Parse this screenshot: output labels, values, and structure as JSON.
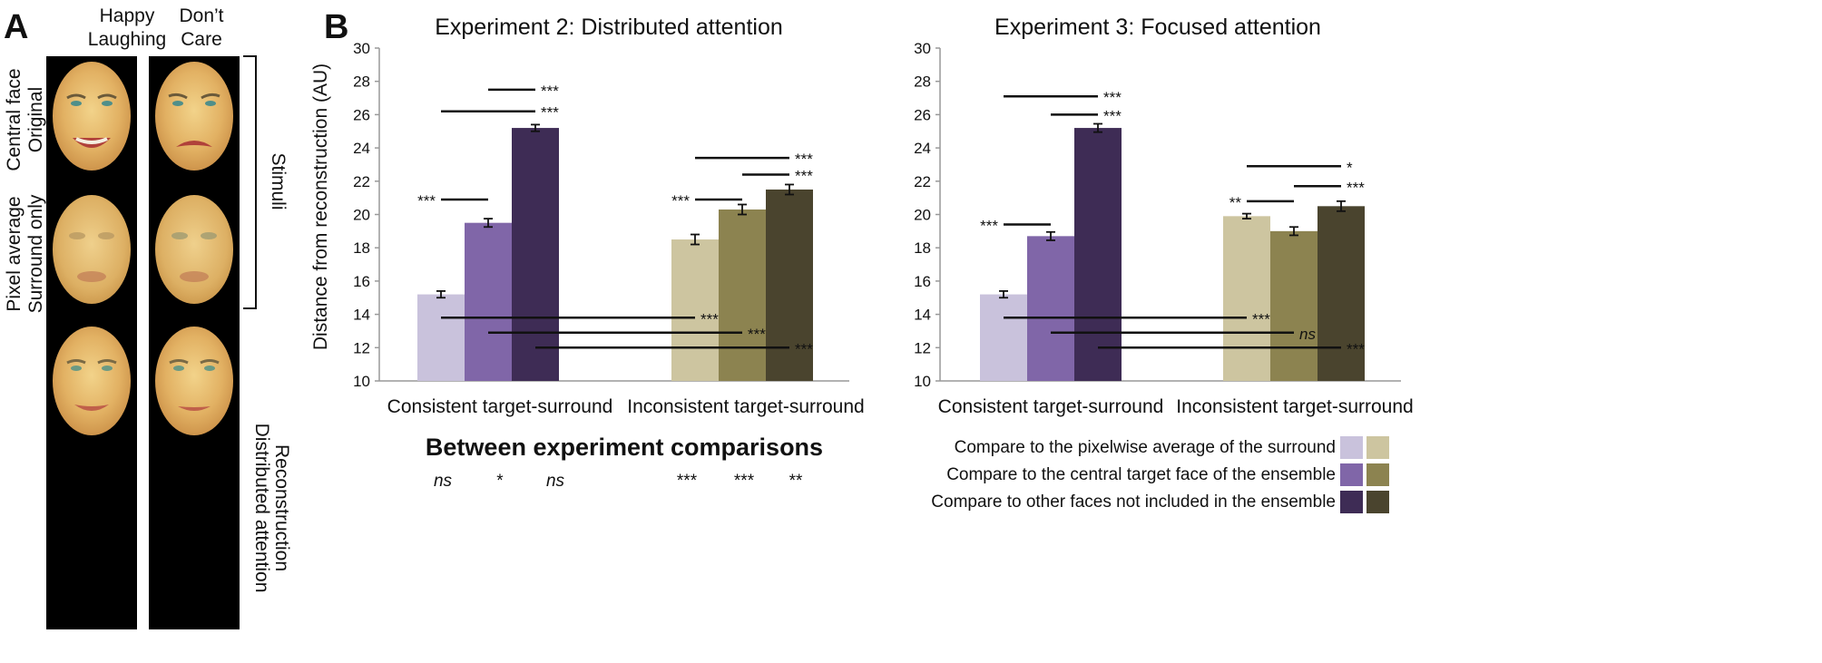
{
  "panel_a": {
    "letter": "A",
    "columns": [
      "Happy\nLaughing",
      "Don’t\nCare"
    ],
    "row_labels": [
      [
        "Central face",
        "Original"
      ],
      [
        "Pixel average",
        "Surround only"
      ],
      [
        "Distributed attention",
        "Reconstruction"
      ]
    ],
    "stimuli_label": "Stimuli"
  },
  "panel_b": {
    "letter": "B",
    "ylabel": "Distance from reconstruction (AU)"
  },
  "colors": {
    "consistent": [
      "#c9c2dc",
      "#8066a8",
      "#3e2c55"
    ],
    "inconsistent": [
      "#cdc5a0",
      "#8c8350",
      "#4a442e"
    ]
  },
  "chart_data": [
    {
      "type": "bar",
      "title": "Experiment 2: Distributed attention",
      "ylabel": "Distance from reconstruction (AU)",
      "ylim": [
        10,
        30
      ],
      "yticks": [
        10,
        12,
        14,
        16,
        18,
        20,
        22,
        24,
        26,
        28,
        30
      ],
      "categories": [
        "Consistent target-surround",
        "Inconsistent target-surround"
      ],
      "series": [
        {
          "name": "Compare to the pixelwise average of the surround",
          "values": [
            15.2,
            18.5
          ],
          "errors": [
            0.2,
            0.3
          ]
        },
        {
          "name": "Compare to the central target face of the ensemble",
          "values": [
            19.5,
            20.3
          ],
          "errors": [
            0.25,
            0.3
          ]
        },
        {
          "name": "Compare to other faces not included in the ensemble",
          "values": [
            25.2,
            21.5
          ],
          "errors": [
            0.2,
            0.3
          ]
        }
      ],
      "within": [
        {
          "group": 0,
          "from": 1,
          "to": 2,
          "y": 27.5,
          "label": "***",
          "side": "right"
        },
        {
          "group": 0,
          "from": 0,
          "to": 2,
          "y": 26.2,
          "label": "***",
          "side": "right"
        },
        {
          "group": 0,
          "from": 0,
          "to": 1,
          "y": 20.9,
          "label": "***",
          "side": "left"
        },
        {
          "group": 1,
          "from": 0,
          "to": 2,
          "y": 23.4,
          "label": "***",
          "side": "right"
        },
        {
          "group": 1,
          "from": 1,
          "to": 2,
          "y": 22.4,
          "label": "***",
          "side": "right"
        },
        {
          "group": 1,
          "from": 0,
          "to": 1,
          "y": 20.9,
          "label": "***",
          "side": "left"
        }
      ],
      "between": [
        {
          "series": 0,
          "y": 13.8,
          "label": "***"
        },
        {
          "series": 1,
          "y": 12.9,
          "label": "***"
        },
        {
          "series": 2,
          "y": 12.0,
          "label": "***"
        }
      ]
    },
    {
      "type": "bar",
      "title": "Experiment 3: Focused attention",
      "ylabel": "",
      "ylim": [
        10,
        30
      ],
      "yticks": [
        10,
        12,
        14,
        16,
        18,
        20,
        22,
        24,
        26,
        28,
        30
      ],
      "categories": [
        "Consistent target-surround",
        "Inconsistent target-surround"
      ],
      "series": [
        {
          "name": "Compare to the pixelwise average of the surround",
          "values": [
            15.2,
            19.9
          ],
          "errors": [
            0.2,
            0.15
          ]
        },
        {
          "name": "Compare to the central target face of the ensemble",
          "values": [
            18.7,
            19.0
          ],
          "errors": [
            0.25,
            0.25
          ]
        },
        {
          "name": "Compare to other faces not included in the ensemble",
          "values": [
            25.2,
            20.5
          ],
          "errors": [
            0.25,
            0.3
          ]
        }
      ],
      "within": [
        {
          "group": 0,
          "from": 0,
          "to": 2,
          "y": 27.1,
          "label": "***",
          "side": "right"
        },
        {
          "group": 0,
          "from": 1,
          "to": 2,
          "y": 26.0,
          "label": "***",
          "side": "right"
        },
        {
          "group": 0,
          "from": 0,
          "to": 1,
          "y": 19.4,
          "label": "***",
          "side": "left"
        },
        {
          "group": 1,
          "from": 0,
          "to": 2,
          "y": 22.9,
          "label": "*",
          "side": "right"
        },
        {
          "group": 1,
          "from": 1,
          "to": 2,
          "y": 21.7,
          "label": "***",
          "side": "right"
        },
        {
          "group": 1,
          "from": 0,
          "to": 1,
          "y": 20.8,
          "label": "**",
          "side": "left"
        }
      ],
      "between": [
        {
          "series": 0,
          "y": 13.8,
          "label": "***"
        },
        {
          "series": 1,
          "y": 12.9,
          "label": "ns"
        },
        {
          "series": 2,
          "y": 12.0,
          "label": "***"
        }
      ]
    }
  ],
  "between_experiments": {
    "title": "Between experiment comparisons",
    "labels": [
      "ns",
      "*",
      "ns",
      "***",
      "***",
      "**"
    ]
  },
  "legend": [
    "Compare to the pixelwise average of the surround",
    "Compare to the central target face of the ensemble",
    "Compare to other faces not included in the ensemble"
  ]
}
